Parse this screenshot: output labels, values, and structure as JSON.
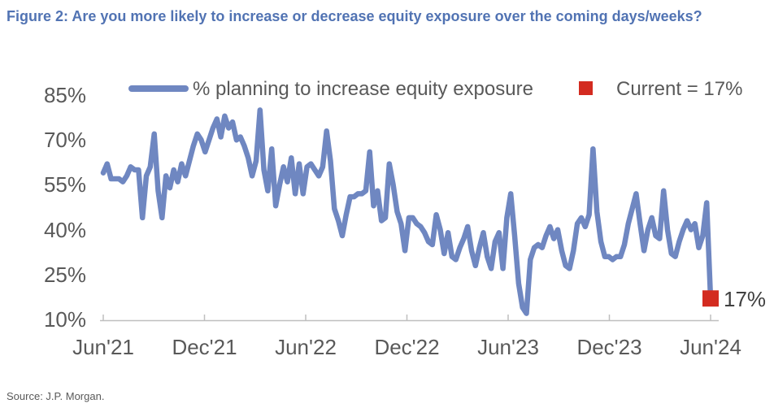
{
  "page": {
    "title": "Figure 2: Are you more likely to increase or decrease equity exposure over the coming days/weeks?",
    "source": "Source: J.P. Morgan."
  },
  "legend": {
    "series_label": "% planning to increase equity exposure",
    "current_label": "Current = 17%"
  },
  "colors": {
    "title_blue": "#5173b3",
    "line_blue": "#6f87c1",
    "current_red": "#d32b20",
    "label_gray": "#595959",
    "axis_gray": "#bfbfbf",
    "annotation_dark": "#404040"
  },
  "chart_data": {
    "type": "line",
    "title": "Figure 2: Are you more likely to increase or decrease equity exposure over the coming days/weeks?",
    "xlabel": "",
    "ylabel": "",
    "ylim": [
      10,
      85
    ],
    "grid": false,
    "legend_position": "top",
    "x_tick_labels": [
      "Jun'21",
      "Dec'21",
      "Jun'22",
      "Dec'22",
      "Jun'23",
      "Dec'23",
      "Jun'24"
    ],
    "y_tick_values": [
      85,
      70,
      55,
      40,
      25,
      10
    ],
    "y_tick_labels": [
      "85%",
      "70%",
      "55%",
      "40%",
      "25%",
      "10%"
    ],
    "series": [
      {
        "name": "% planning to increase equity exposure",
        "frequency": "weekly",
        "values": [
          59,
          62,
          57,
          57,
          57,
          56,
          58,
          61,
          60,
          60,
          44,
          58,
          61,
          72,
          53,
          44,
          58,
          54,
          60,
          56,
          62,
          58,
          63,
          68,
          72,
          70,
          66,
          70,
          74,
          77,
          71,
          78,
          74,
          76,
          70,
          71,
          68,
          64,
          58,
          63,
          80,
          60,
          53,
          67,
          48,
          55,
          61,
          56,
          64,
          52,
          62,
          52,
          61,
          62,
          60,
          58,
          61,
          73,
          63,
          47,
          43,
          38,
          45,
          51,
          51,
          52,
          52,
          53,
          66,
          48,
          53,
          43,
          44,
          62,
          55,
          46,
          42,
          33,
          44,
          44,
          42,
          41,
          39,
          36,
          35,
          45,
          40,
          32,
          39,
          31,
          30,
          34,
          37,
          41,
          33,
          28,
          34,
          39,
          31,
          27,
          36,
          39,
          27,
          44,
          52,
          38,
          22,
          14,
          12,
          30,
          34,
          35,
          34,
          38,
          41,
          37,
          40,
          33,
          28,
          27,
          33,
          42,
          44,
          41,
          45,
          67,
          46,
          36,
          31,
          31,
          30,
          31,
          31,
          35,
          42,
          47,
          52,
          42,
          33,
          40,
          44,
          38,
          37,
          53,
          40,
          32,
          31,
          36,
          40,
          43,
          40,
          42,
          34,
          38,
          49,
          17
        ]
      }
    ],
    "current": {
      "value": 17,
      "label": "17%"
    }
  }
}
